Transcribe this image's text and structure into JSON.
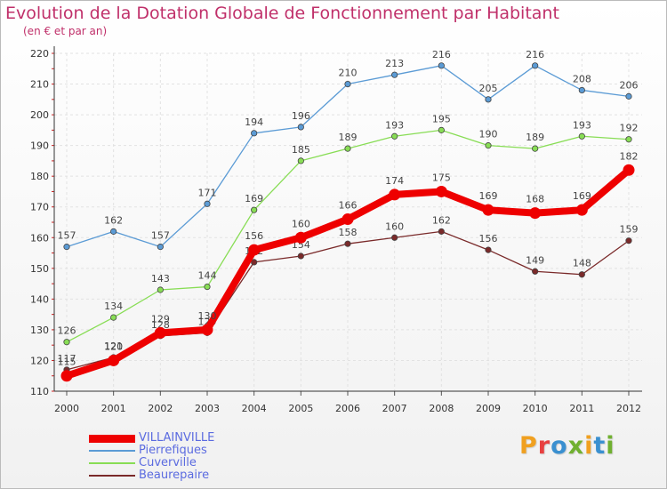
{
  "header": {
    "title": "Evolution de la Dotation Globale de Fonctionnement par Habitant",
    "subtitle": "(en € et par an)"
  },
  "logo": {
    "text": "Proxiti",
    "colors": [
      "#f0a020",
      "#e84040",
      "#3a90d0",
      "#70b030",
      "#f0a020",
      "#3a90d0",
      "#70b030"
    ]
  },
  "chart_data": {
    "type": "line",
    "x": [
      "2000",
      "2001",
      "2002",
      "2003",
      "2004",
      "2005",
      "2006",
      "2007",
      "2008",
      "2009",
      "2010",
      "2011",
      "2012"
    ],
    "ylim": [
      110,
      220
    ],
    "yticks": [
      110,
      120,
      130,
      140,
      150,
      160,
      170,
      180,
      190,
      200,
      210,
      220
    ],
    "grid": true,
    "legend_position": "bottom-left",
    "series": [
      {
        "name": "Pierrefiques",
        "color": "#5b9bd5",
        "values": [
          157,
          162,
          157,
          171,
          194,
          196,
          210,
          213,
          216,
          205,
          216,
          208,
          206
        ]
      },
      {
        "name": "Cuverville",
        "color": "#88dd55",
        "values": [
          126,
          134,
          143,
          144,
          169,
          185,
          189,
          193,
          195,
          190,
          189,
          193,
          192
        ]
      },
      {
        "name": "Beaurepaire",
        "color": "#7a2a2a",
        "values": [
          117,
          121,
          128,
          129,
          152,
          154,
          158,
          160,
          162,
          156,
          149,
          148,
          159
        ]
      },
      {
        "name": "VILLAINVILLE",
        "color": "#ee0000",
        "values": [
          115,
          120,
          129,
          130,
          156,
          160,
          166,
          174,
          175,
          169,
          168,
          169,
          182
        ]
      }
    ],
    "legend": [
      {
        "name": "VILLAINVILLE",
        "color": "#ee0000"
      },
      {
        "name": "Pierrefiques",
        "color": "#5b9bd5"
      },
      {
        "name": "Cuverville",
        "color": "#88dd55"
      },
      {
        "name": "Beaurepaire",
        "color": "#7a2a2a"
      }
    ]
  }
}
